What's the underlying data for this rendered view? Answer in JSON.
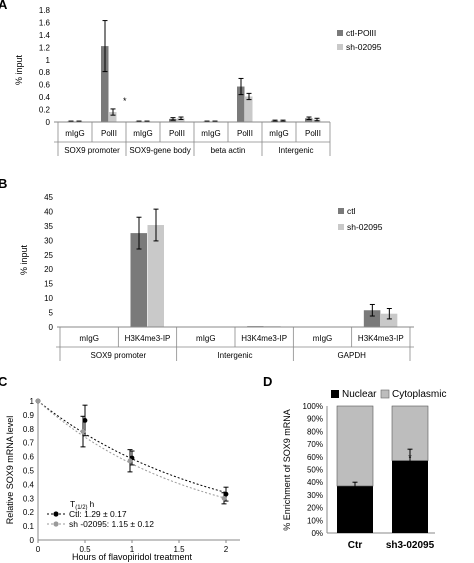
{
  "colors": {
    "dark": "#7a7a7a",
    "light": "#c9c9c9",
    "black": "#000000",
    "lightline": "#9a9a9a"
  },
  "chart_data": [
    {
      "panel": "A",
      "type": "bar",
      "ylabel": "% input",
      "ylim": [
        0,
        1.8
      ],
      "yticks": [
        "0",
        "0.2",
        "0.4",
        "0.6",
        "0.8",
        "1",
        "1.2",
        "1.4",
        "1.6",
        "1.8"
      ],
      "legend": "right",
      "categories": [
        "mIgG",
        "PolII",
        "mIgG",
        "PolII",
        "mIgG",
        "PolII",
        "mIgG",
        "PolII"
      ],
      "groups": [
        "SOX9 promoter",
        "SOX9-gene body",
        "beta actin",
        "Intergenic"
      ],
      "series": [
        {
          "name": "ctl-POlII",
          "values": [
            0.01,
            1.22,
            0.01,
            0.05,
            0.01,
            0.57,
            0.02,
            0.06
          ],
          "errors": [
            0.005,
            0.41,
            0.005,
            0.02,
            0.005,
            0.13,
            0.01,
            0.02
          ]
        },
        {
          "name": "sh-02095",
          "values": [
            0.01,
            0.16,
            0.01,
            0.06,
            0.01,
            0.41,
            0.02,
            0.04
          ],
          "errors": [
            0.005,
            0.05,
            0.005,
            0.02,
            0.005,
            0.05,
            0.01,
            0.02
          ]
        }
      ],
      "annotations": [
        "*"
      ]
    },
    {
      "panel": "B",
      "type": "bar",
      "ylabel": "% input",
      "ylim": [
        0,
        45
      ],
      "yticks": [
        "0",
        "5",
        "10",
        "15",
        "20",
        "25",
        "30",
        "35",
        "40",
        "45"
      ],
      "legend": "right",
      "categories": [
        "mIgG",
        "H3K4me3-IP",
        "mIgG",
        "H3K4me3-IP",
        "mIgG",
        "H3K4me3-IP"
      ],
      "groups": [
        "SOX9 promoter",
        "Intergenic",
        "GAPDH"
      ],
      "series": [
        {
          "name": "ctl",
          "values": [
            0.1,
            32.5,
            0.1,
            0.3,
            0.1,
            5.8
          ],
          "errors": [
            0.05,
            5.5,
            0.05,
            0.1,
            0.05,
            2.0
          ]
        },
        {
          "name": "sh-02095",
          "values": [
            0.1,
            35.3,
            0.1,
            0.3,
            0.1,
            4.6
          ],
          "errors": [
            0.05,
            5.5,
            0.05,
            0.1,
            0.05,
            1.8
          ]
        }
      ]
    },
    {
      "panel": "C",
      "type": "line",
      "ylabel": "Relative SOX9 mRNA level",
      "xlabel": "Hours of flavopiridol treatment",
      "xlim": [
        0,
        2
      ],
      "ylim": [
        0,
        1
      ],
      "xticks": [
        "0",
        "0.5",
        "1",
        "1.5",
        "2"
      ],
      "yticks": [
        "0",
        "0.1",
        "0.2",
        "0.3",
        "0.4",
        "0.5",
        "0.6",
        "0.7",
        "0.8",
        "0.9",
        "1"
      ],
      "legend_title": "T(1/2) h",
      "legend_title_main": "T",
      "legend_title_sub": "(1/2)",
      "legend_title_unit": "h",
      "series": [
        {
          "name": "Ctl: 1.29 ± 0.17",
          "x": [
            0,
            0.5,
            1,
            2
          ],
          "y": [
            1.0,
            0.86,
            0.59,
            0.33
          ],
          "errors": [
            0,
            0.11,
            0.05,
            0.05
          ],
          "fit_half_life": 1.29
        },
        {
          "name": "sh   -02095: 1.15 ± 0.12",
          "x": [
            0,
            0.5,
            1,
            2
          ],
          "y": [
            1.0,
            0.78,
            0.57,
            0.3
          ],
          "errors": [
            0,
            0.11,
            0.08,
            0.04
          ],
          "fit_half_life": 1.15
        }
      ]
    },
    {
      "panel": "D",
      "type": "bar",
      "stacked": true,
      "ylabel": "% Enrichment of SOX9 mRNA",
      "ylim": [
        0,
        100
      ],
      "yticks": [
        "0%",
        "10%",
        "20%",
        "30%",
        "40%",
        "50%",
        "60%",
        "70%",
        "80%",
        "90%",
        "100%"
      ],
      "legend": "top",
      "categories": [
        "Ctr",
        "sh3-02095"
      ],
      "series": [
        {
          "name": "Nuclear",
          "values": [
            37,
            57
          ],
          "errors": [
            3,
            9
          ]
        },
        {
          "name": "Cytoplasmic",
          "values": [
            63,
            43
          ]
        }
      ],
      "annotations": [
        "*"
      ]
    }
  ]
}
